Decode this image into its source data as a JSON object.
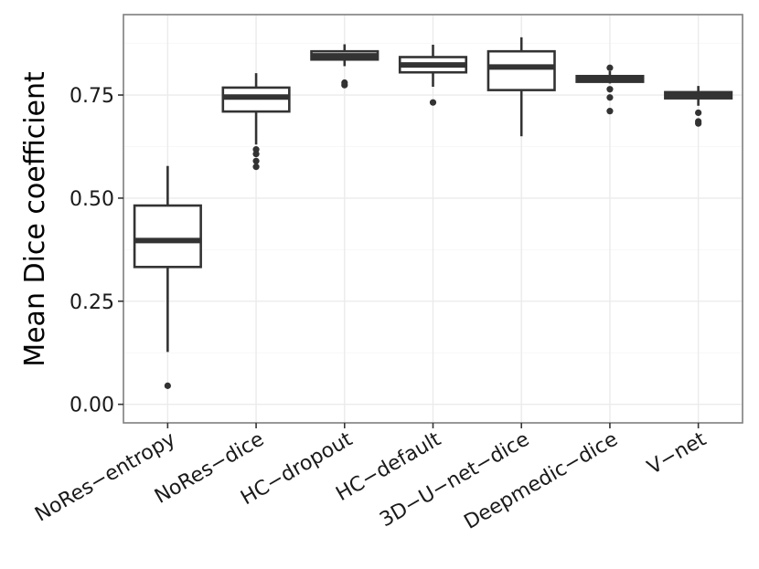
{
  "chart_data": {
    "type": "boxplot",
    "title": "",
    "xlabel": "",
    "ylabel": "Mean Dice coefficient",
    "ylim": [
      -0.045,
      0.945
    ],
    "yticks": [
      0.0,
      0.25,
      0.5,
      0.75
    ],
    "ytick_labels": [
      "0.00",
      "0.25",
      "0.50",
      "0.75"
    ],
    "grid": true,
    "categories": [
      "NoRes−entropy",
      "NoRes−dice",
      "HC−dropout",
      "HC−default",
      "3D−U−net−dice",
      "Deepmedic−dice",
      "V−net"
    ],
    "boxes": [
      {
        "label": "NoRes−entropy",
        "whisker_low": 0.127,
        "q1": 0.333,
        "median": 0.397,
        "q3": 0.482,
        "whisker_high": 0.578,
        "outliers": [
          0.045
        ]
      },
      {
        "label": "NoRes−dice",
        "whisker_low": 0.63,
        "q1": 0.71,
        "median": 0.745,
        "q3": 0.768,
        "whisker_high": 0.803,
        "outliers": [
          0.618,
          0.607,
          0.59,
          0.576
        ]
      },
      {
        "label": "HC−dropout",
        "whisker_low": 0.82,
        "q1": 0.836,
        "median": 0.845,
        "q3": 0.856,
        "whisker_high": 0.873,
        "outliers": [
          0.78,
          0.774
        ]
      },
      {
        "label": "HC−default",
        "whisker_low": 0.77,
        "q1": 0.805,
        "median": 0.823,
        "q3": 0.842,
        "whisker_high": 0.872,
        "outliers": [
          0.732
        ]
      },
      {
        "label": "3D−U−net−dice",
        "whisker_low": 0.65,
        "q1": 0.762,
        "median": 0.818,
        "q3": 0.856,
        "whisker_high": 0.89,
        "outliers": []
      },
      {
        "label": "Deepmedic−dice",
        "whisker_low": 0.778,
        "q1": 0.782,
        "median": 0.788,
        "q3": 0.796,
        "whisker_high": 0.808,
        "outliers": [
          0.816,
          0.764,
          0.744,
          0.711
        ]
      },
      {
        "label": "V−net",
        "whisker_low": 0.724,
        "q1": 0.742,
        "median": 0.749,
        "q3": 0.757,
        "whisker_high": 0.772,
        "outliers": [
          0.707,
          0.686,
          0.681
        ]
      }
    ],
    "colors": {
      "box_stroke": "#333333",
      "box_fill": "#ffffff",
      "grid": "#ebebeb",
      "panel_border": "#7f7f7f"
    }
  }
}
